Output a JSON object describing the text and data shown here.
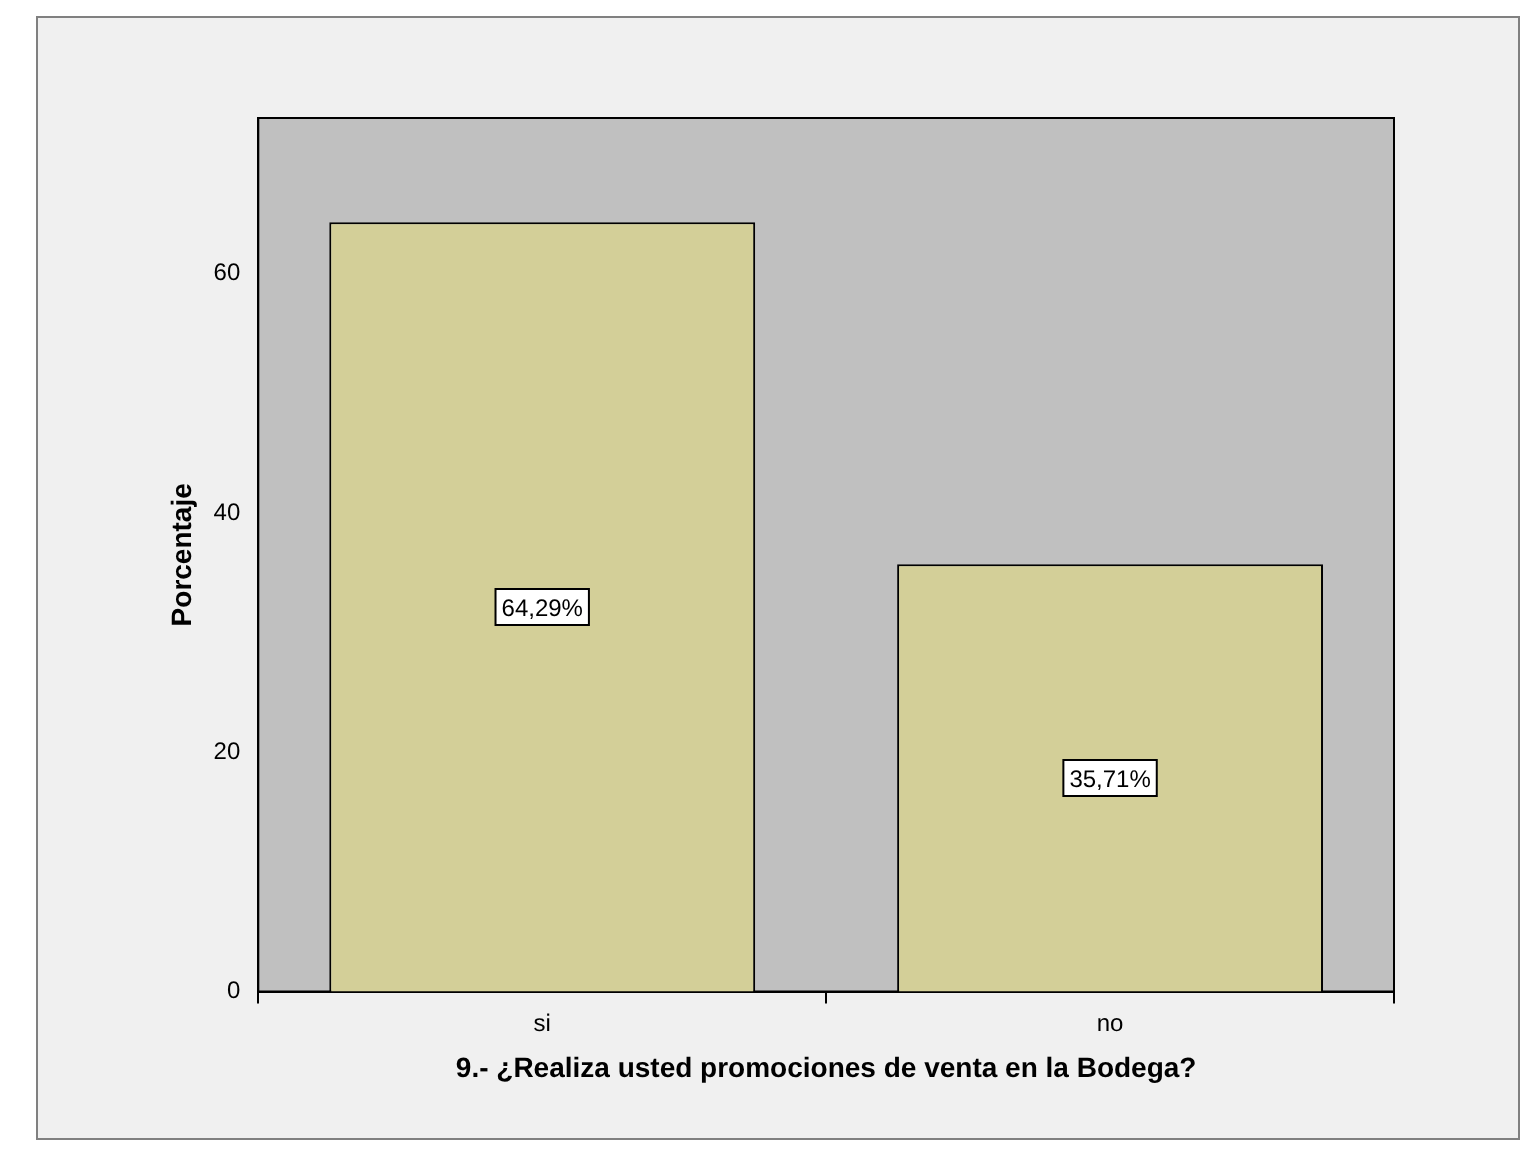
{
  "chart_data": {
    "type": "bar",
    "xlabel": "9.- ¿Realiza usted promociones de venta en la Bodega?",
    "ylabel": "Porcentaje",
    "categories": [
      "si",
      "no"
    ],
    "values": [
      64.29,
      35.71
    ],
    "value_labels": [
      "64,29%",
      "35,71%"
    ],
    "color": "#d3cf98",
    "ylim": [
      0,
      73
    ],
    "yticks": [
      0,
      20,
      40,
      60
    ],
    "grid": false,
    "legend": false
  }
}
